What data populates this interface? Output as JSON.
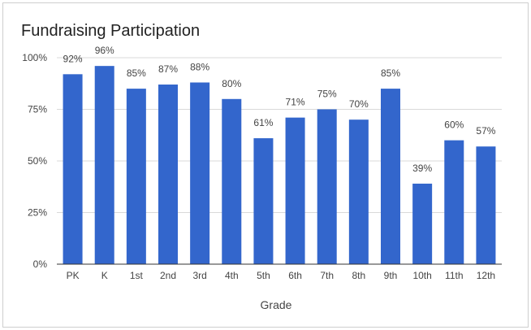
{
  "chart_data": {
    "type": "bar",
    "title": "Fundraising Participation",
    "xlabel": "Grade",
    "ylabel": "",
    "categories": [
      "PK",
      "K",
      "1st",
      "2nd",
      "3rd",
      "4th",
      "5th",
      "6th",
      "7th",
      "8th",
      "9th",
      "10th",
      "11th",
      "12th"
    ],
    "values": [
      92,
      96,
      85,
      87,
      88,
      80,
      61,
      71,
      75,
      70,
      85,
      39,
      60,
      57
    ],
    "data_labels": [
      "92%",
      "96%",
      "85%",
      "87%",
      "88%",
      "80%",
      "61%",
      "71%",
      "75%",
      "70%",
      "85%",
      "39%",
      "60%",
      "57%"
    ],
    "y_ticks": [
      0,
      25,
      50,
      75,
      100
    ],
    "y_tick_labels": [
      "0%",
      "25%",
      "50%",
      "75%",
      "100%"
    ],
    "ylim": [
      0,
      100
    ],
    "grid": true,
    "legend": "none",
    "colors": {
      "bar": "#3366cc",
      "grid": "#d9d9d9",
      "axis": "#333333"
    }
  }
}
